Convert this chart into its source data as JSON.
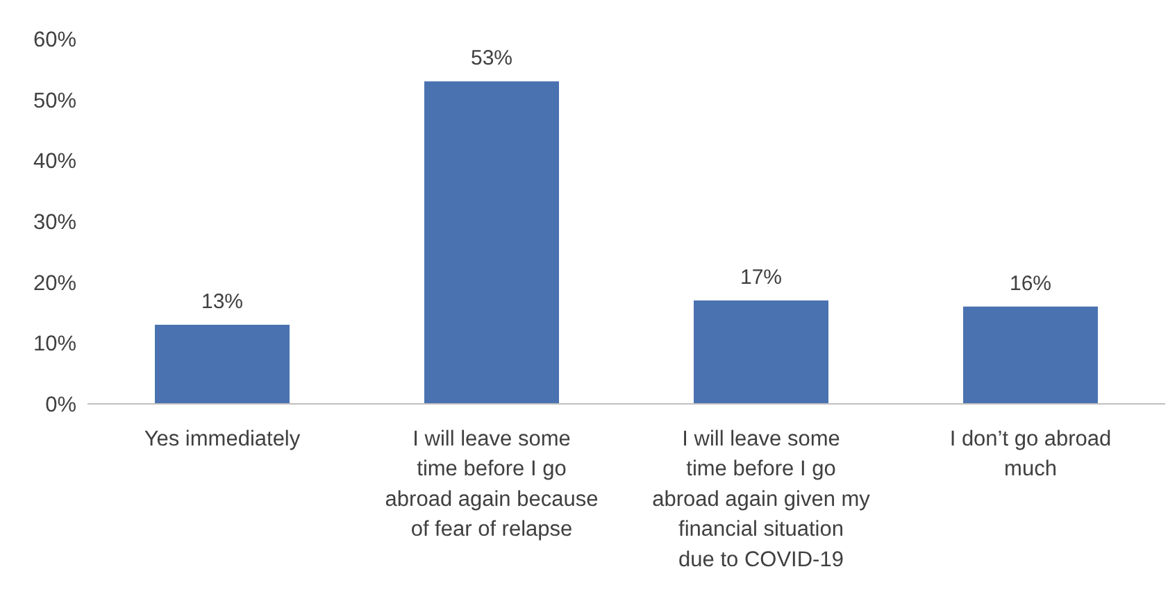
{
  "chart_data": {
    "type": "bar",
    "categories": [
      "Yes immediately",
      "I will leave some time before I go abroad again because of fear of relapse",
      "I will leave some time before I go abroad again given my financial situation due to COVID-19",
      "I don’t go abroad much"
    ],
    "values": [
      13,
      53,
      17,
      16
    ],
    "color": "#4a72b0",
    "value_labels": [
      "13%",
      "53%",
      "17%",
      "16%"
    ],
    "ylim": [
      0,
      60
    ],
    "yticks": [
      {
        "value": 0,
        "label": "0%"
      },
      {
        "value": 10,
        "label": "10%"
      },
      {
        "value": 20,
        "label": "20%"
      },
      {
        "value": 30,
        "label": "30%"
      },
      {
        "value": 40,
        "label": "40%"
      },
      {
        "value": 50,
        "label": "50%"
      },
      {
        "value": 60,
        "label": "60%"
      }
    ],
    "grid": false,
    "legend": false
  }
}
